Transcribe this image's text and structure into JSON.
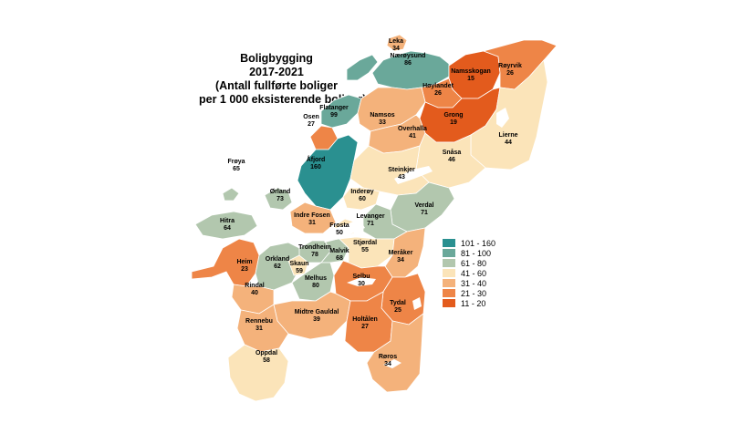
{
  "title": [
    "Boligbygging",
    "2017-2021",
    "(Antall fullførte boliger",
    "per 1 000 eksisterende boliger)"
  ],
  "legend": [
    {
      "label": "101 - 160",
      "color": "#2a9090"
    },
    {
      "label": "81 - 100",
      "color": "#6aa89a"
    },
    {
      "label": "61 - 80",
      "color": "#b2c7ae"
    },
    {
      "label": "41 - 60",
      "color": "#fbe4b9"
    },
    {
      "label": "31 - 40",
      "color": "#f4b27b"
    },
    {
      "label": "21 - 30",
      "color": "#ee8547"
    },
    {
      "label": "11 - 20",
      "color": "#e35b1d"
    }
  ],
  "municipalities": [
    {
      "name": "Leka",
      "value": "34"
    },
    {
      "name": "Nærøysund",
      "value": "86"
    },
    {
      "name": "Namsskogan",
      "value": "15"
    },
    {
      "name": "Røyrvik",
      "value": "26"
    },
    {
      "name": "Høylandet",
      "value": "26"
    },
    {
      "name": "Flatanger",
      "value": "99"
    },
    {
      "name": "Osen",
      "value": "27"
    },
    {
      "name": "Namsos",
      "value": "33"
    },
    {
      "name": "Grong",
      "value": "19"
    },
    {
      "name": "Overhalla",
      "value": "41"
    },
    {
      "name": "Lierne",
      "value": "44"
    },
    {
      "name": "Snåsa",
      "value": "46"
    },
    {
      "name": "Frøya",
      "value": "65"
    },
    {
      "name": "Åfjord",
      "value": "160"
    },
    {
      "name": "Steinkjer",
      "value": "43"
    },
    {
      "name": "Ørland",
      "value": "73"
    },
    {
      "name": "Inderøy",
      "value": "60"
    },
    {
      "name": "Verdal",
      "value": "71"
    },
    {
      "name": "Indre Fosen",
      "value": "31"
    },
    {
      "name": "Hitra",
      "value": "64"
    },
    {
      "name": "Levanger",
      "value": "71"
    },
    {
      "name": "Frosta",
      "value": "50"
    },
    {
      "name": "Trondheim",
      "value": "78"
    },
    {
      "name": "Stjørdal",
      "value": "55"
    },
    {
      "name": "Malvik",
      "value": "68"
    },
    {
      "name": "Heim",
      "value": "23"
    },
    {
      "name": "Orkland",
      "value": "62"
    },
    {
      "name": "Skaun",
      "value": "59"
    },
    {
      "name": "Meråker",
      "value": "34"
    },
    {
      "name": "Melhus",
      "value": "80"
    },
    {
      "name": "Selbu",
      "value": "30"
    },
    {
      "name": "Rindal",
      "value": "40"
    },
    {
      "name": "Tydal",
      "value": "25"
    },
    {
      "name": "Midtre Gauldal",
      "value": "39"
    },
    {
      "name": "Rennebu",
      "value": "31"
    },
    {
      "name": "Holtålen",
      "value": "27"
    },
    {
      "name": "Oppdal",
      "value": "58"
    },
    {
      "name": "Røros",
      "value": "34"
    }
  ]
}
